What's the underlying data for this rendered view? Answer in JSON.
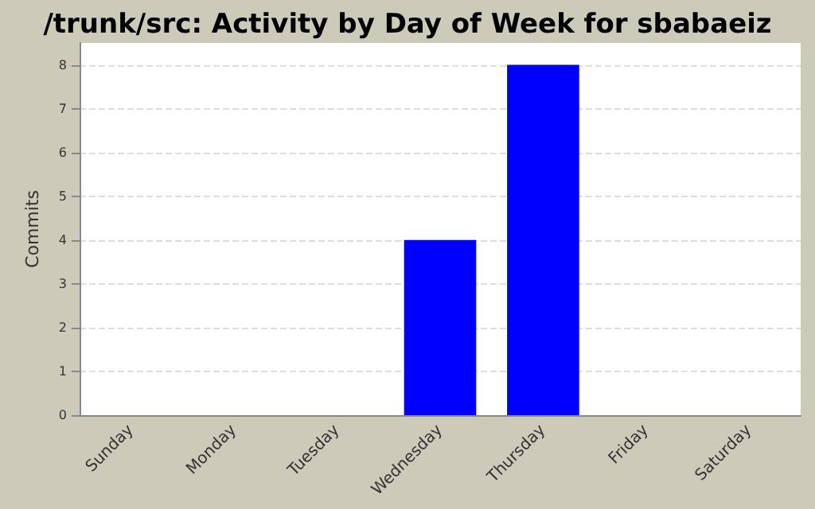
{
  "chart_data": {
    "type": "bar",
    "title": "/trunk/src: Activity by Day of Week for sbabaeiz",
    "ylabel": "Commits",
    "categories": [
      "Sunday",
      "Monday",
      "Tuesday",
      "Wednesday",
      "Thursday",
      "Friday",
      "Saturday"
    ],
    "values": [
      0,
      0,
      0,
      4,
      8,
      0,
      0
    ],
    "color": "#0000ff",
    "ylim": [
      0,
      8.5
    ],
    "yticks": [
      0,
      1,
      2,
      3,
      4,
      5,
      6,
      7,
      8
    ],
    "grid": "y"
  }
}
